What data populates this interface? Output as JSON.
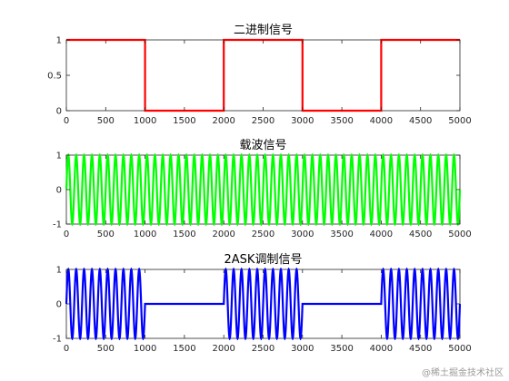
{
  "watermark": "@稀土掘金技术社区",
  "colors": {
    "axes": "#262626",
    "background": "#ffffff"
  },
  "chart_data": [
    {
      "type": "line",
      "title": "二进制信号",
      "color": "#ff0000",
      "xlim": [
        0,
        5000
      ],
      "ylim": [
        0,
        1
      ],
      "xticks": [
        0,
        500,
        1000,
        1500,
        2000,
        2500,
        3000,
        3500,
        4000,
        4500,
        5000
      ],
      "yticks": [
        0,
        0.5,
        1
      ],
      "bits": [
        1,
        0,
        1,
        0,
        1
      ],
      "bit_length": 1000,
      "cycles_per_bit": 0
    },
    {
      "type": "line",
      "title": "载波信号",
      "color": "#00ff00",
      "xlim": [
        0,
        5000
      ],
      "ylim": [
        -1,
        1
      ],
      "xticks": [
        0,
        500,
        1000,
        1500,
        2000,
        2500,
        3000,
        3500,
        4000,
        4500,
        5000
      ],
      "yticks": [
        -1,
        0,
        1
      ],
      "bits": [
        1,
        1,
        1,
        1,
        1
      ],
      "bit_length": 1000,
      "cycles_per_bit": 10
    },
    {
      "type": "line",
      "title": "2ASK调制信号",
      "color": "#0000ff",
      "xlim": [
        0,
        5000
      ],
      "ylim": [
        -1,
        1
      ],
      "xticks": [
        0,
        500,
        1000,
        1500,
        2000,
        2500,
        3000,
        3500,
        4000,
        4500,
        5000
      ],
      "yticks": [
        -1,
        0,
        1
      ],
      "bits": [
        1,
        0,
        1,
        0,
        1
      ],
      "bit_length": 1000,
      "cycles_per_bit": 10
    }
  ]
}
